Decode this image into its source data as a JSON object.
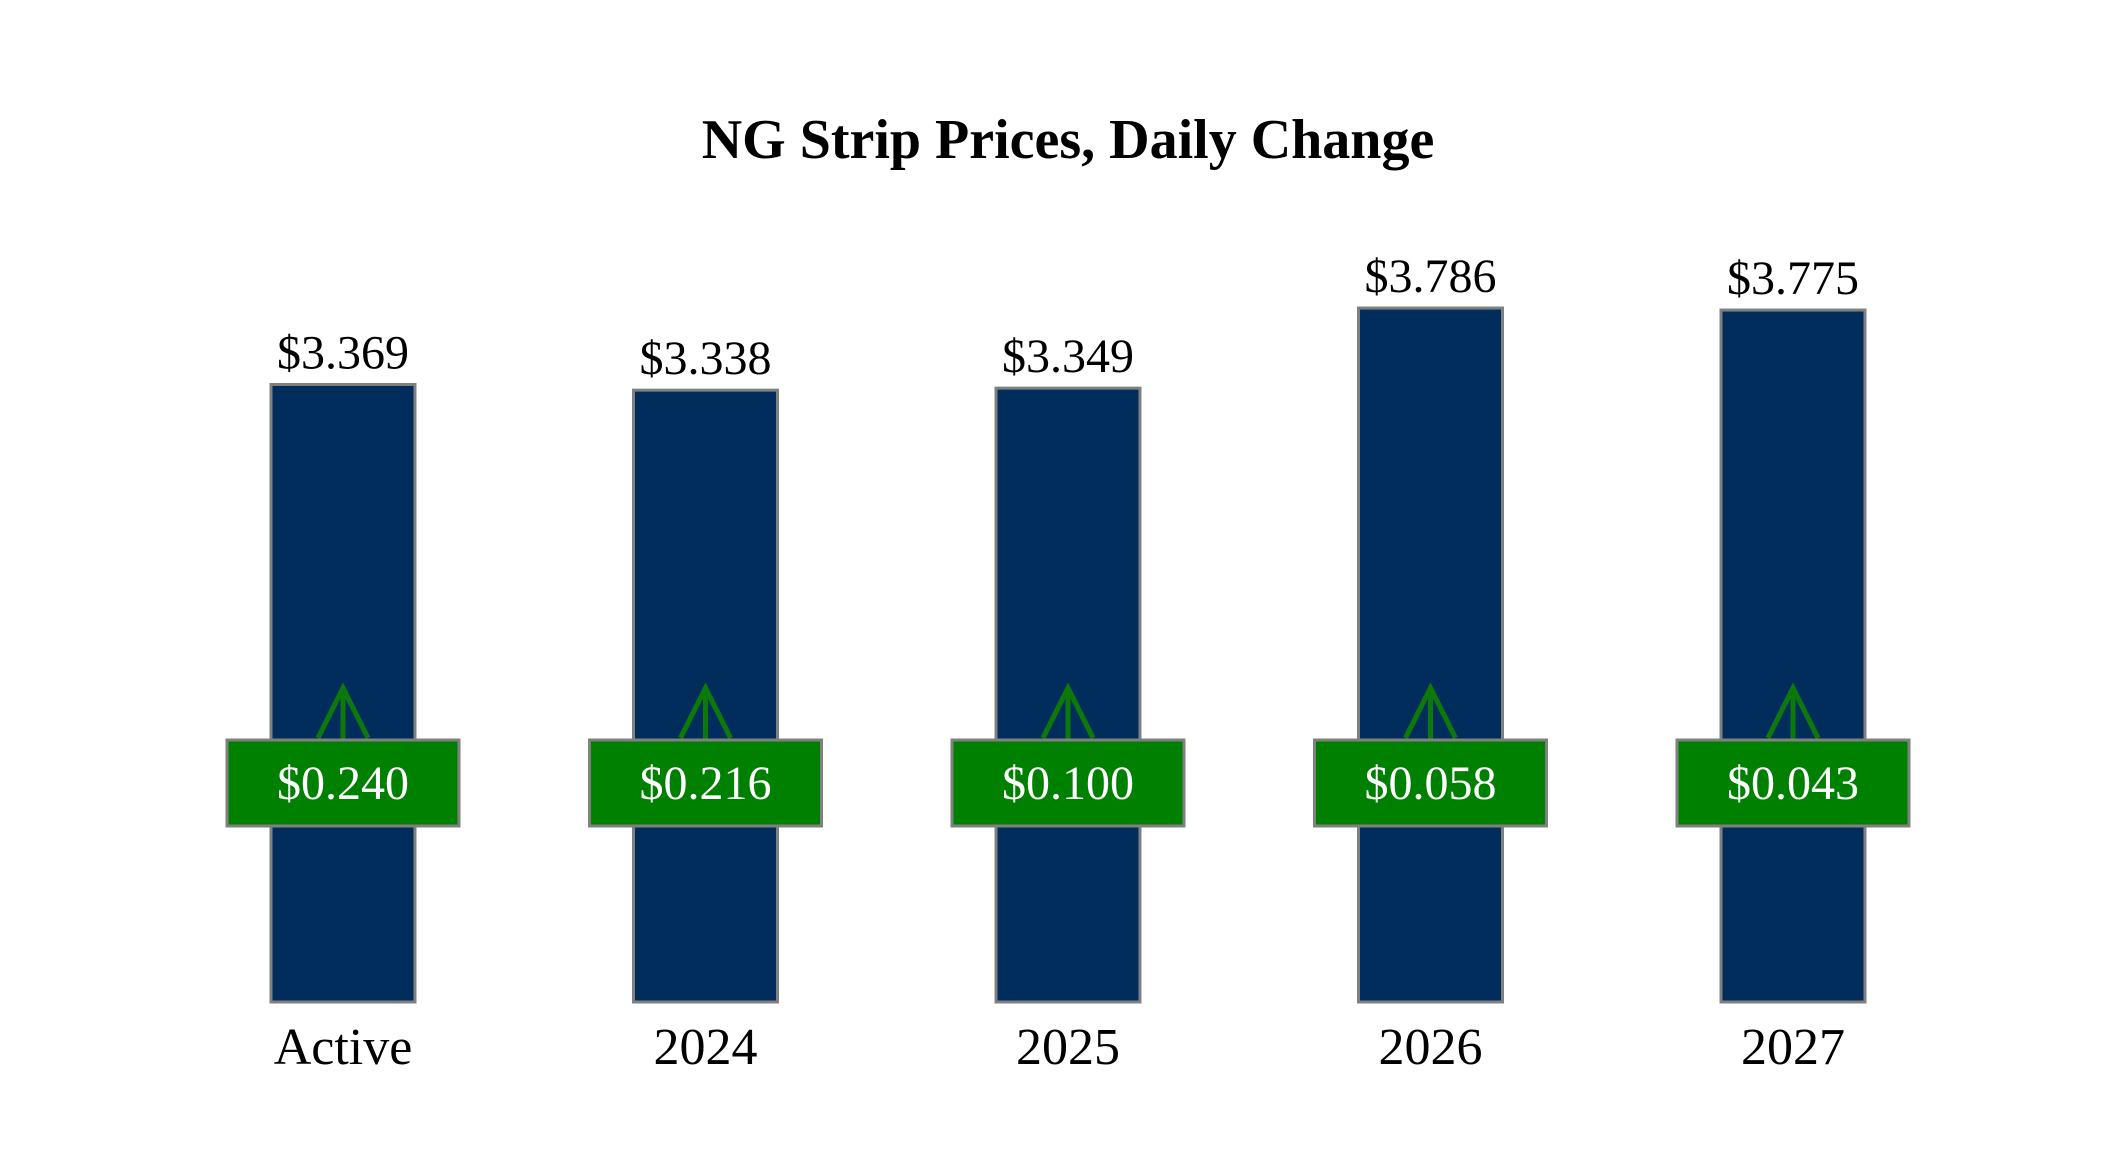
{
  "chart_data": {
    "type": "bar",
    "title": "NG Strip Prices, Daily Change",
    "xlabel": "",
    "ylabel": "",
    "ylim": [
      0,
      4.2
    ],
    "grid": false,
    "legend": "none",
    "categories": [
      "Active",
      "2024",
      "2025",
      "2026",
      "2027"
    ],
    "values": [
      3.369,
      3.338,
      3.349,
      3.786,
      3.775
    ],
    "value_labels": [
      "$3.369",
      "$3.338",
      "$3.349",
      "$3.786",
      "$3.775"
    ],
    "daily_change": [
      0.24,
      0.216,
      0.1,
      0.058,
      0.043
    ],
    "daily_change_labels": [
      "$0.240",
      "$0.216",
      "$0.100",
      "$0.058",
      "$0.043"
    ],
    "change_direction": [
      "up",
      "up",
      "up",
      "up",
      "up"
    ]
  },
  "colors": {
    "bar": "#002D5C",
    "bar_border": "#808080",
    "change_box": "#008000",
    "change_box_border": "#808080",
    "arrow": "#0B7A0B"
  },
  "icons": {
    "change_arrow": "arrow-up-icon"
  }
}
